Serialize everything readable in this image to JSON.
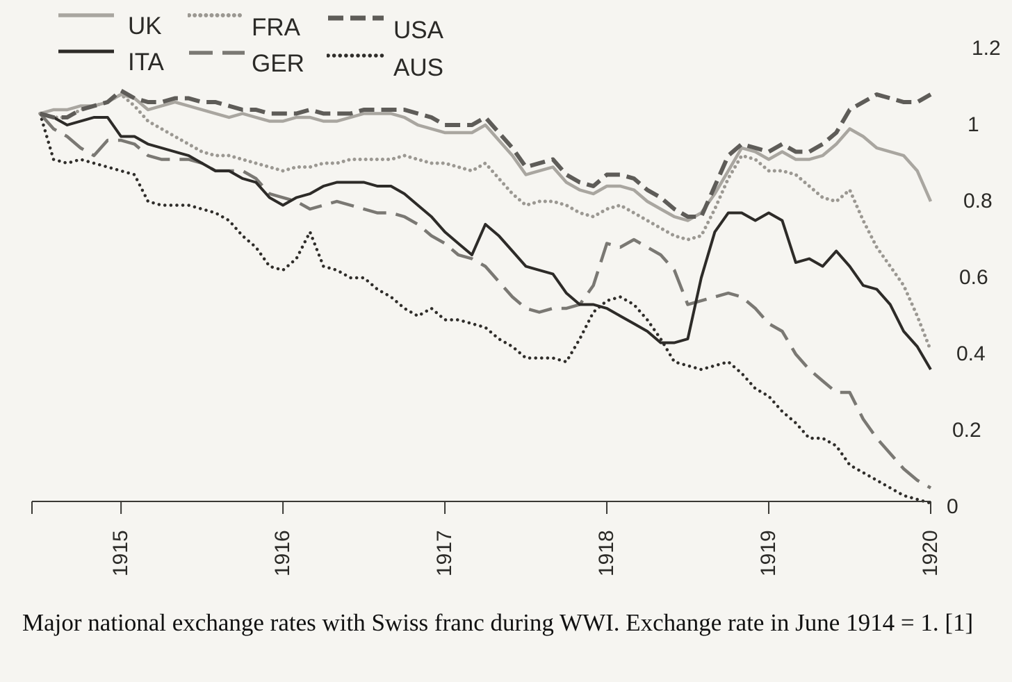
{
  "chart_data": {
    "type": "line",
    "title": "",
    "xlabel": "",
    "ylabel": "",
    "x": [
      1914.5,
      1914.583,
      1914.667,
      1914.75,
      1914.833,
      1914.917,
      1915.0,
      1915.083,
      1915.167,
      1915.25,
      1915.333,
      1915.417,
      1915.5,
      1915.583,
      1915.667,
      1915.75,
      1915.833,
      1915.917,
      1916.0,
      1916.083,
      1916.167,
      1916.25,
      1916.333,
      1916.417,
      1916.5,
      1916.583,
      1916.667,
      1916.75,
      1916.833,
      1916.917,
      1917.0,
      1917.083,
      1917.167,
      1917.25,
      1917.333,
      1917.417,
      1917.5,
      1917.583,
      1917.667,
      1917.75,
      1917.833,
      1917.917,
      1918.0,
      1918.083,
      1918.167,
      1918.25,
      1918.333,
      1918.417,
      1918.5,
      1918.583,
      1918.667,
      1918.75,
      1918.833,
      1918.917,
      1919.0,
      1919.083,
      1919.167,
      1919.25,
      1919.333,
      1919.417,
      1919.5,
      1919.583,
      1919.667,
      1919.75,
      1919.833,
      1919.917,
      1920.0
    ],
    "series": [
      {
        "name": "UK",
        "style": "solid-light",
        "values": [
          1.03,
          1.04,
          1.04,
          1.05,
          1.05,
          1.06,
          1.08,
          1.07,
          1.04,
          1.05,
          1.06,
          1.05,
          1.04,
          1.03,
          1.02,
          1.03,
          1.02,
          1.01,
          1.01,
          1.02,
          1.02,
          1.01,
          1.01,
          1.02,
          1.03,
          1.03,
          1.03,
          1.02,
          1.0,
          0.99,
          0.98,
          0.98,
          0.98,
          1.0,
          0.96,
          0.92,
          0.87,
          0.88,
          0.89,
          0.85,
          0.83,
          0.82,
          0.84,
          0.84,
          0.83,
          0.8,
          0.78,
          0.76,
          0.75,
          0.77,
          0.82,
          0.88,
          0.94,
          0.93,
          0.91,
          0.93,
          0.91,
          0.91,
          0.92,
          0.95,
          0.99,
          0.97,
          0.94,
          0.93,
          0.92,
          0.88,
          0.8
        ]
      },
      {
        "name": "FRA",
        "style": "dotted-light",
        "values": [
          1.03,
          1.02,
          1.02,
          1.04,
          1.05,
          1.06,
          1.08,
          1.05,
          1.01,
          0.99,
          0.97,
          0.95,
          0.93,
          0.92,
          0.92,
          0.91,
          0.9,
          0.89,
          0.88,
          0.89,
          0.89,
          0.9,
          0.9,
          0.91,
          0.91,
          0.91,
          0.91,
          0.92,
          0.91,
          0.9,
          0.9,
          0.89,
          0.88,
          0.9,
          0.86,
          0.82,
          0.79,
          0.8,
          0.8,
          0.79,
          0.77,
          0.76,
          0.78,
          0.79,
          0.77,
          0.75,
          0.73,
          0.71,
          0.7,
          0.71,
          0.78,
          0.86,
          0.92,
          0.91,
          0.88,
          0.88,
          0.87,
          0.84,
          0.81,
          0.8,
          0.83,
          0.75,
          0.68,
          0.63,
          0.58,
          0.5,
          0.41
        ]
      },
      {
        "name": "USA",
        "style": "dashed-dark",
        "values": [
          1.03,
          1.02,
          1.02,
          1.04,
          1.05,
          1.06,
          1.09,
          1.07,
          1.06,
          1.06,
          1.07,
          1.07,
          1.06,
          1.06,
          1.05,
          1.04,
          1.04,
          1.03,
          1.03,
          1.03,
          1.04,
          1.03,
          1.03,
          1.03,
          1.04,
          1.04,
          1.04,
          1.04,
          1.03,
          1.02,
          1.0,
          1.0,
          1.0,
          1.02,
          0.98,
          0.94,
          0.89,
          0.9,
          0.91,
          0.87,
          0.85,
          0.84,
          0.87,
          0.87,
          0.86,
          0.83,
          0.81,
          0.78,
          0.76,
          0.76,
          0.84,
          0.92,
          0.95,
          0.94,
          0.93,
          0.95,
          0.93,
          0.93,
          0.95,
          0.98,
          1.04,
          1.06,
          1.08,
          1.07,
          1.06,
          1.06,
          1.08
        ]
      },
      {
        "name": "ITA",
        "style": "solid-dark",
        "values": [
          1.03,
          1.02,
          1.0,
          1.01,
          1.02,
          1.02,
          0.97,
          0.97,
          0.95,
          0.94,
          0.93,
          0.92,
          0.9,
          0.88,
          0.88,
          0.86,
          0.85,
          0.81,
          0.79,
          0.81,
          0.82,
          0.84,
          0.85,
          0.85,
          0.85,
          0.84,
          0.84,
          0.82,
          0.79,
          0.76,
          0.72,
          0.69,
          0.66,
          0.74,
          0.71,
          0.67,
          0.63,
          0.62,
          0.61,
          0.56,
          0.53,
          0.53,
          0.52,
          0.5,
          0.48,
          0.46,
          0.43,
          0.43,
          0.44,
          0.6,
          0.72,
          0.77,
          0.77,
          0.75,
          0.77,
          0.75,
          0.64,
          0.65,
          0.63,
          0.67,
          0.63,
          0.58,
          0.57,
          0.53,
          0.46,
          0.42,
          0.36
        ]
      },
      {
        "name": "GER",
        "style": "longdash-mid",
        "values": [
          1.03,
          0.99,
          0.97,
          0.94,
          0.92,
          0.96,
          0.96,
          0.95,
          0.92,
          0.91,
          0.91,
          0.91,
          0.9,
          0.88,
          0.88,
          0.88,
          0.86,
          0.82,
          0.81,
          0.8,
          0.78,
          0.79,
          0.8,
          0.79,
          0.78,
          0.77,
          0.77,
          0.76,
          0.74,
          0.71,
          0.69,
          0.66,
          0.65,
          0.63,
          0.59,
          0.55,
          0.52,
          0.51,
          0.52,
          0.52,
          0.53,
          0.58,
          0.69,
          0.68,
          0.7,
          0.68,
          0.66,
          0.62,
          0.53,
          0.54,
          0.55,
          0.56,
          0.55,
          0.52,
          0.48,
          0.46,
          0.4,
          0.36,
          0.33,
          0.3,
          0.3,
          0.23,
          0.18,
          0.14,
          0.1,
          0.07,
          0.05
        ]
      },
      {
        "name": "AUS",
        "style": "dotted-dark",
        "values": [
          1.03,
          0.91,
          0.9,
          0.91,
          0.9,
          0.89,
          0.88,
          0.87,
          0.8,
          0.79,
          0.79,
          0.79,
          0.78,
          0.77,
          0.75,
          0.71,
          0.68,
          0.63,
          0.62,
          0.65,
          0.72,
          0.63,
          0.62,
          0.6,
          0.6,
          0.57,
          0.55,
          0.52,
          0.5,
          0.52,
          0.49,
          0.49,
          0.48,
          0.47,
          0.44,
          0.42,
          0.39,
          0.39,
          0.39,
          0.38,
          0.44,
          0.51,
          0.54,
          0.55,
          0.53,
          0.49,
          0.44,
          0.38,
          0.37,
          0.36,
          0.37,
          0.38,
          0.35,
          0.31,
          0.29,
          0.25,
          0.22,
          0.18,
          0.18,
          0.16,
          0.11,
          0.09,
          0.07,
          0.05,
          0.03,
          0.02,
          0.01
        ]
      }
    ],
    "legend": [
      {
        "name": "UK"
      },
      {
        "name": "FRA"
      },
      {
        "name": "USA"
      },
      {
        "name": "ITA"
      },
      {
        "name": "GER"
      },
      {
        "name": "AUS"
      }
    ],
    "legend_position": "top-left",
    "y_ticks": [
      "0",
      "0.2",
      "0.4",
      "0.6",
      "0.8",
      "1",
      "1.2"
    ],
    "y_tick_values": [
      0,
      0.2,
      0.4,
      0.6,
      0.8,
      1.0,
      1.2
    ],
    "x_ticks": [
      "1915",
      "1916",
      "1917",
      "1918",
      "1919",
      "1920"
    ],
    "x_tick_values": [
      1915,
      1916,
      1917,
      1918,
      1919,
      1920
    ],
    "ylim": [
      0,
      1.2
    ],
    "xlim": [
      1914.45,
      1920.0
    ],
    "grid": false,
    "y_axis_side": "right"
  },
  "caption": "Major national exchange rates with Swiss franc during WWI. Exchange rate in June 1914 = 1. [1]",
  "colors": {
    "uk": "#a9a6a0",
    "fra": "#9b9892",
    "usa": "#5e5c58",
    "ita": "#2d2b28",
    "ger": "#7a7873",
    "aus": "#2f2d2a",
    "axis": "#3a3935",
    "background": "#f6f5f1"
  }
}
